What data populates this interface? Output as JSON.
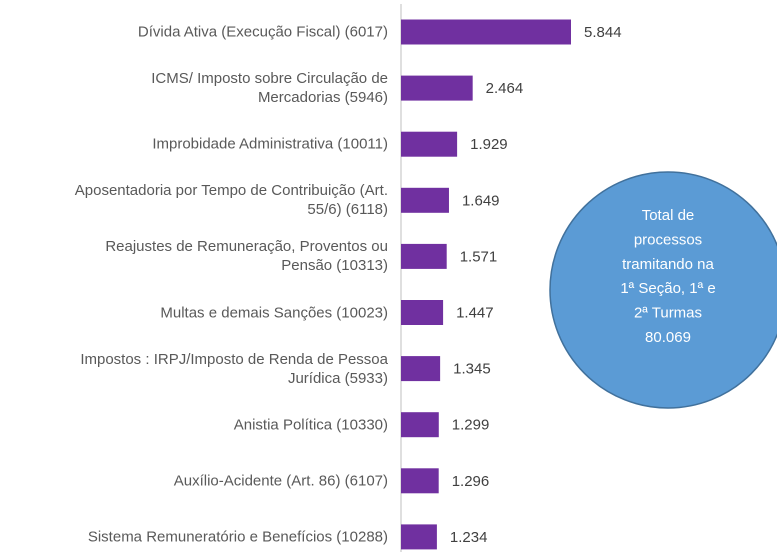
{
  "chart_data": {
    "type": "bar",
    "orientation": "horizontal",
    "categories": [
      "Dívida Ativa (Execução Fiscal) (6017)",
      "ICMS/ Imposto sobre Circulação de\nMercadorias (5946)",
      "Improbidade Administrativa (10011)",
      "Aposentadoria por Tempo de Contribuição (Art.\n55/6) (6118)",
      "Reajustes de Remuneração, Proventos ou\nPensão (10313)",
      "Multas e demais Sanções (10023)",
      "Impostos : IRPJ/Imposto de Renda de Pessoa\nJurídica (5933)",
      "Anistia Política (10330)",
      "Auxílio-Acidente (Art. 86) (6107)",
      "Sistema Remuneratório e Benefícios (10288)"
    ],
    "values": [
      5844,
      2464,
      1929,
      1649,
      1571,
      1447,
      1345,
      1299,
      1296,
      1234
    ],
    "value_labels": [
      "5.844",
      "2.464",
      "1.929",
      "1.649",
      "1.571",
      "1.447",
      "1.345",
      "1.299",
      "1.296",
      "1.234"
    ],
    "color": "#7030a0",
    "annotation": [
      "Total de",
      "processos",
      "tramitando na",
      "1ª Seção, 1ª e",
      "2ª Turmas",
      "80.069"
    ]
  }
}
